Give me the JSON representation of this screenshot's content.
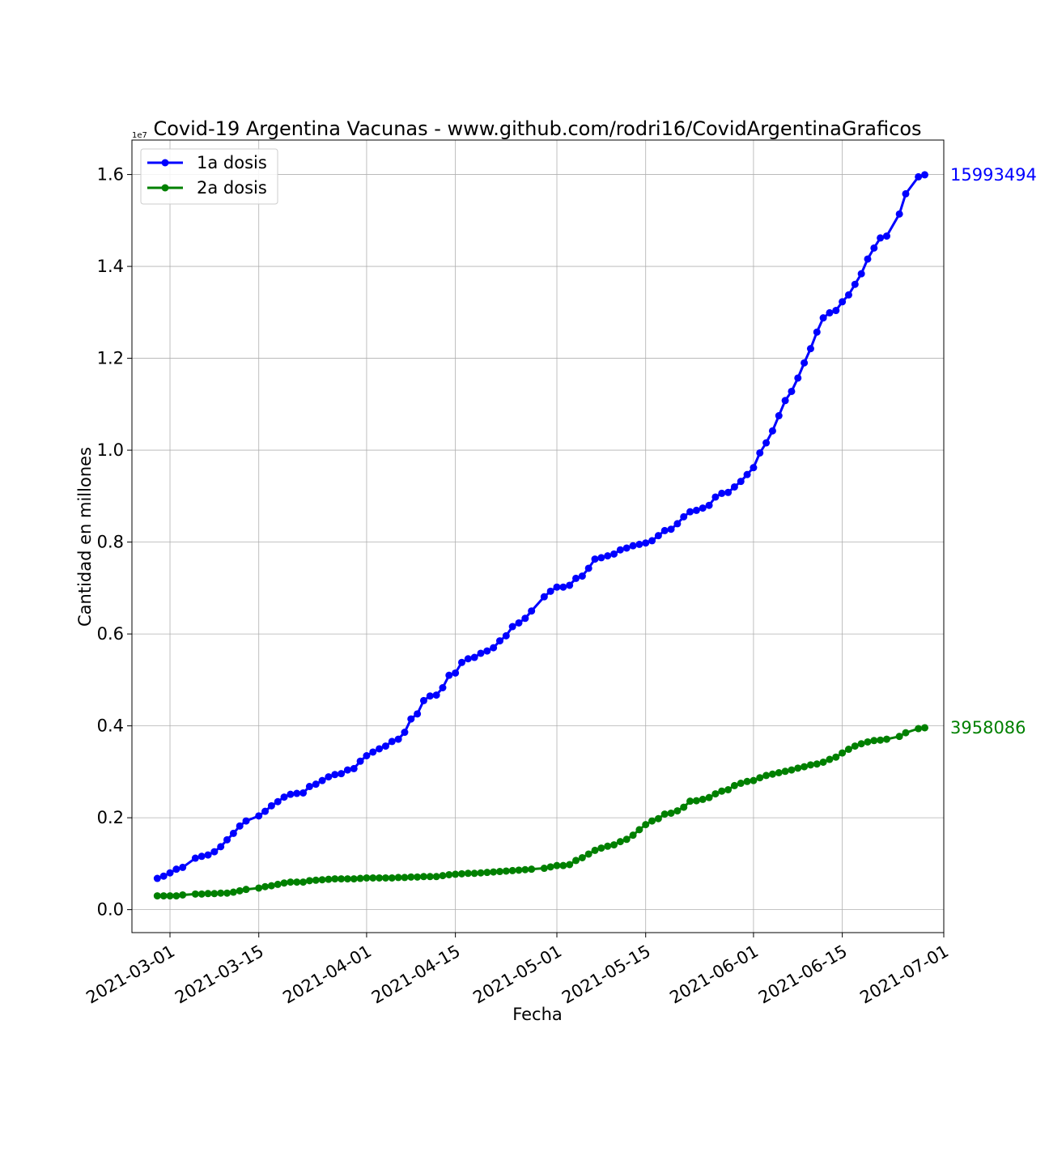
{
  "chart_data": {
    "type": "line",
    "title": "Covid-19 Argentina Vacunas - www.github.com/rodri16/CovidArgentinaGraficos",
    "xlabel": "Fecha",
    "ylabel": "Cantidad en millones",
    "y_offset_label": "1e7",
    "y_scale": 10000000,
    "xlim": [
      "2021-02-23",
      "2021-07-01"
    ],
    "ylim": [
      -0.05,
      1.675
    ],
    "x_ticks": [
      "2021-03-01",
      "2021-03-15",
      "2021-04-01",
      "2021-04-15",
      "2021-05-01",
      "2021-05-15",
      "2021-06-01",
      "2021-06-15",
      "2021-07-01"
    ],
    "y_ticks": [
      0.0,
      0.2,
      0.4,
      0.6,
      0.8,
      1.0,
      1.2,
      1.4,
      1.6
    ],
    "grid": true,
    "legend_position": "top-left",
    "series": [
      {
        "name": "1a dosis",
        "color": "#0000ff",
        "end_label": "15993494",
        "points": [
          [
            "2021-02-27",
            0.068
          ],
          [
            "2021-02-28",
            0.073
          ],
          [
            "2021-03-01",
            0.08
          ],
          [
            "2021-03-02",
            0.088
          ],
          [
            "2021-03-03",
            0.092
          ],
          [
            "2021-03-05",
            0.112
          ],
          [
            "2021-03-06",
            0.116
          ],
          [
            "2021-03-07",
            0.119
          ],
          [
            "2021-03-08",
            0.126
          ],
          [
            "2021-03-09",
            0.137
          ],
          [
            "2021-03-10",
            0.152
          ],
          [
            "2021-03-11",
            0.166
          ],
          [
            "2021-03-12",
            0.182
          ],
          [
            "2021-03-13",
            0.193
          ],
          [
            "2021-03-15",
            0.204
          ],
          [
            "2021-03-16",
            0.214
          ],
          [
            "2021-03-17",
            0.226
          ],
          [
            "2021-03-18",
            0.235
          ],
          [
            "2021-03-19",
            0.245
          ],
          [
            "2021-03-20",
            0.251
          ],
          [
            "2021-03-21",
            0.253
          ],
          [
            "2021-03-22",
            0.254
          ],
          [
            "2021-03-23",
            0.268
          ],
          [
            "2021-03-24",
            0.273
          ],
          [
            "2021-03-25",
            0.281
          ],
          [
            "2021-03-26",
            0.289
          ],
          [
            "2021-03-27",
            0.294
          ],
          [
            "2021-03-28",
            0.296
          ],
          [
            "2021-03-29",
            0.304
          ],
          [
            "2021-03-30",
            0.307
          ],
          [
            "2021-03-31",
            0.323
          ],
          [
            "2021-04-01",
            0.335
          ],
          [
            "2021-04-02",
            0.343
          ],
          [
            "2021-04-03",
            0.35
          ],
          [
            "2021-04-04",
            0.356
          ],
          [
            "2021-04-05",
            0.366
          ],
          [
            "2021-04-06",
            0.371
          ],
          [
            "2021-04-07",
            0.386
          ],
          [
            "2021-04-08",
            0.415
          ],
          [
            "2021-04-09",
            0.426
          ],
          [
            "2021-04-10",
            0.455
          ],
          [
            "2021-04-11",
            0.465
          ],
          [
            "2021-04-12",
            0.467
          ],
          [
            "2021-04-13",
            0.483
          ],
          [
            "2021-04-14",
            0.51
          ],
          [
            "2021-04-15",
            0.515
          ],
          [
            "2021-04-16",
            0.538
          ],
          [
            "2021-04-17",
            0.546
          ],
          [
            "2021-04-18",
            0.549
          ],
          [
            "2021-04-19",
            0.558
          ],
          [
            "2021-04-20",
            0.563
          ],
          [
            "2021-04-21",
            0.57
          ],
          [
            "2021-04-22",
            0.585
          ],
          [
            "2021-04-23",
            0.596
          ],
          [
            "2021-04-24",
            0.616
          ],
          [
            "2021-04-25",
            0.624
          ],
          [
            "2021-04-26",
            0.634
          ],
          [
            "2021-04-27",
            0.65
          ],
          [
            "2021-04-29",
            0.681
          ],
          [
            "2021-04-30",
            0.693
          ],
          [
            "2021-05-01",
            0.702
          ],
          [
            "2021-05-02",
            0.702
          ],
          [
            "2021-05-03",
            0.706
          ],
          [
            "2021-05-04",
            0.721
          ],
          [
            "2021-05-05",
            0.726
          ],
          [
            "2021-05-06",
            0.743
          ],
          [
            "2021-05-07",
            0.763
          ],
          [
            "2021-05-08",
            0.766
          ],
          [
            "2021-05-09",
            0.77
          ],
          [
            "2021-05-10",
            0.774
          ],
          [
            "2021-05-11",
            0.783
          ],
          [
            "2021-05-12",
            0.787
          ],
          [
            "2021-05-13",
            0.792
          ],
          [
            "2021-05-14",
            0.795
          ],
          [
            "2021-05-15",
            0.798
          ],
          [
            "2021-05-16",
            0.803
          ],
          [
            "2021-05-17",
            0.814
          ],
          [
            "2021-05-18",
            0.825
          ],
          [
            "2021-05-19",
            0.828
          ],
          [
            "2021-05-20",
            0.84
          ],
          [
            "2021-05-21",
            0.855
          ],
          [
            "2021-05-22",
            0.866
          ],
          [
            "2021-05-23",
            0.869
          ],
          [
            "2021-05-24",
            0.874
          ],
          [
            "2021-05-25",
            0.88
          ],
          [
            "2021-05-26",
            0.898
          ],
          [
            "2021-05-27",
            0.906
          ],
          [
            "2021-05-28",
            0.908
          ],
          [
            "2021-05-29",
            0.92
          ],
          [
            "2021-05-30",
            0.932
          ],
          [
            "2021-05-31",
            0.947
          ],
          [
            "2021-06-01",
            0.962
          ],
          [
            "2021-06-02",
            0.994
          ],
          [
            "2021-06-03",
            1.016
          ],
          [
            "2021-06-04",
            1.042
          ],
          [
            "2021-06-05",
            1.075
          ],
          [
            "2021-06-06",
            1.108
          ],
          [
            "2021-06-07",
            1.128
          ],
          [
            "2021-06-08",
            1.157
          ],
          [
            "2021-06-09",
            1.19
          ],
          [
            "2021-06-10",
            1.221
          ],
          [
            "2021-06-11",
            1.257
          ],
          [
            "2021-06-12",
            1.288
          ],
          [
            "2021-06-13",
            1.299
          ],
          [
            "2021-06-14",
            1.304
          ],
          [
            "2021-06-15",
            1.323
          ],
          [
            "2021-06-16",
            1.338
          ],
          [
            "2021-06-17",
            1.361
          ],
          [
            "2021-06-18",
            1.384
          ],
          [
            "2021-06-19",
            1.416
          ],
          [
            "2021-06-20",
            1.44
          ],
          [
            "2021-06-21",
            1.462
          ],
          [
            "2021-06-22",
            1.466
          ],
          [
            "2021-06-24",
            1.514
          ],
          [
            "2021-06-25",
            1.558
          ],
          [
            "2021-06-27",
            1.595
          ],
          [
            "2021-06-28",
            1.5993494
          ]
        ]
      },
      {
        "name": "2a dosis",
        "color": "#008000",
        "end_label": "3958086",
        "points": [
          [
            "2021-02-27",
            0.03
          ],
          [
            "2021-02-28",
            0.03
          ],
          [
            "2021-03-01",
            0.03
          ],
          [
            "2021-03-02",
            0.03
          ],
          [
            "2021-03-03",
            0.032
          ],
          [
            "2021-03-05",
            0.034
          ],
          [
            "2021-03-06",
            0.034
          ],
          [
            "2021-03-07",
            0.035
          ],
          [
            "2021-03-08",
            0.035
          ],
          [
            "2021-03-09",
            0.036
          ],
          [
            "2021-03-10",
            0.036
          ],
          [
            "2021-03-11",
            0.038
          ],
          [
            "2021-03-12",
            0.041
          ],
          [
            "2021-03-13",
            0.044
          ],
          [
            "2021-03-15",
            0.047
          ],
          [
            "2021-03-16",
            0.05
          ],
          [
            "2021-03-17",
            0.052
          ],
          [
            "2021-03-18",
            0.055
          ],
          [
            "2021-03-19",
            0.058
          ],
          [
            "2021-03-20",
            0.06
          ],
          [
            "2021-03-21",
            0.06
          ],
          [
            "2021-03-22",
            0.06
          ],
          [
            "2021-03-23",
            0.063
          ],
          [
            "2021-03-24",
            0.064
          ],
          [
            "2021-03-25",
            0.065
          ],
          [
            "2021-03-26",
            0.066
          ],
          [
            "2021-03-27",
            0.067
          ],
          [
            "2021-03-28",
            0.067
          ],
          [
            "2021-03-29",
            0.067
          ],
          [
            "2021-03-30",
            0.067
          ],
          [
            "2021-03-31",
            0.068
          ],
          [
            "2021-04-01",
            0.069
          ],
          [
            "2021-04-02",
            0.069
          ],
          [
            "2021-04-03",
            0.069
          ],
          [
            "2021-04-04",
            0.069
          ],
          [
            "2021-04-05",
            0.069
          ],
          [
            "2021-04-06",
            0.07
          ],
          [
            "2021-04-07",
            0.07
          ],
          [
            "2021-04-08",
            0.071
          ],
          [
            "2021-04-09",
            0.071
          ],
          [
            "2021-04-10",
            0.072
          ],
          [
            "2021-04-11",
            0.072
          ],
          [
            "2021-04-12",
            0.072
          ],
          [
            "2021-04-13",
            0.074
          ],
          [
            "2021-04-14",
            0.076
          ],
          [
            "2021-04-15",
            0.077
          ],
          [
            "2021-04-16",
            0.078
          ],
          [
            "2021-04-17",
            0.079
          ],
          [
            "2021-04-18",
            0.079
          ],
          [
            "2021-04-19",
            0.08
          ],
          [
            "2021-04-20",
            0.081
          ],
          [
            "2021-04-21",
            0.082
          ],
          [
            "2021-04-22",
            0.083
          ],
          [
            "2021-04-23",
            0.084
          ],
          [
            "2021-04-24",
            0.085
          ],
          [
            "2021-04-25",
            0.086
          ],
          [
            "2021-04-26",
            0.087
          ],
          [
            "2021-04-27",
            0.088
          ],
          [
            "2021-04-29",
            0.09
          ],
          [
            "2021-04-30",
            0.093
          ],
          [
            "2021-05-01",
            0.096
          ],
          [
            "2021-05-02",
            0.096
          ],
          [
            "2021-05-03",
            0.098
          ],
          [
            "2021-05-04",
            0.107
          ],
          [
            "2021-05-05",
            0.113
          ],
          [
            "2021-05-06",
            0.121
          ],
          [
            "2021-05-07",
            0.129
          ],
          [
            "2021-05-08",
            0.134
          ],
          [
            "2021-05-09",
            0.138
          ],
          [
            "2021-05-10",
            0.141
          ],
          [
            "2021-05-11",
            0.148
          ],
          [
            "2021-05-12",
            0.153
          ],
          [
            "2021-05-13",
            0.162
          ],
          [
            "2021-05-14",
            0.174
          ],
          [
            "2021-05-15",
            0.185
          ],
          [
            "2021-05-16",
            0.193
          ],
          [
            "2021-05-17",
            0.198
          ],
          [
            "2021-05-18",
            0.208
          ],
          [
            "2021-05-19",
            0.21
          ],
          [
            "2021-05-20",
            0.215
          ],
          [
            "2021-05-21",
            0.223
          ],
          [
            "2021-05-22",
            0.236
          ],
          [
            "2021-05-23",
            0.237
          ],
          [
            "2021-05-24",
            0.24
          ],
          [
            "2021-05-25",
            0.244
          ],
          [
            "2021-05-26",
            0.252
          ],
          [
            "2021-05-27",
            0.258
          ],
          [
            "2021-05-28",
            0.261
          ],
          [
            "2021-05-29",
            0.27
          ],
          [
            "2021-05-30",
            0.275
          ],
          [
            "2021-05-31",
            0.279
          ],
          [
            "2021-06-01",
            0.281
          ],
          [
            "2021-06-02",
            0.287
          ],
          [
            "2021-06-03",
            0.292
          ],
          [
            "2021-06-04",
            0.295
          ],
          [
            "2021-06-05",
            0.298
          ],
          [
            "2021-06-06",
            0.301
          ],
          [
            "2021-06-07",
            0.304
          ],
          [
            "2021-06-08",
            0.308
          ],
          [
            "2021-06-09",
            0.311
          ],
          [
            "2021-06-10",
            0.315
          ],
          [
            "2021-06-11",
            0.317
          ],
          [
            "2021-06-12",
            0.321
          ],
          [
            "2021-06-13",
            0.327
          ],
          [
            "2021-06-14",
            0.332
          ],
          [
            "2021-06-15",
            0.341
          ],
          [
            "2021-06-16",
            0.349
          ],
          [
            "2021-06-17",
            0.356
          ],
          [
            "2021-06-18",
            0.361
          ],
          [
            "2021-06-19",
            0.365
          ],
          [
            "2021-06-20",
            0.368
          ],
          [
            "2021-06-21",
            0.369
          ],
          [
            "2021-06-22",
            0.371
          ],
          [
            "2021-06-24",
            0.377
          ],
          [
            "2021-06-25",
            0.385
          ],
          [
            "2021-06-27",
            0.394
          ],
          [
            "2021-06-28",
            0.3958086
          ]
        ]
      }
    ]
  }
}
